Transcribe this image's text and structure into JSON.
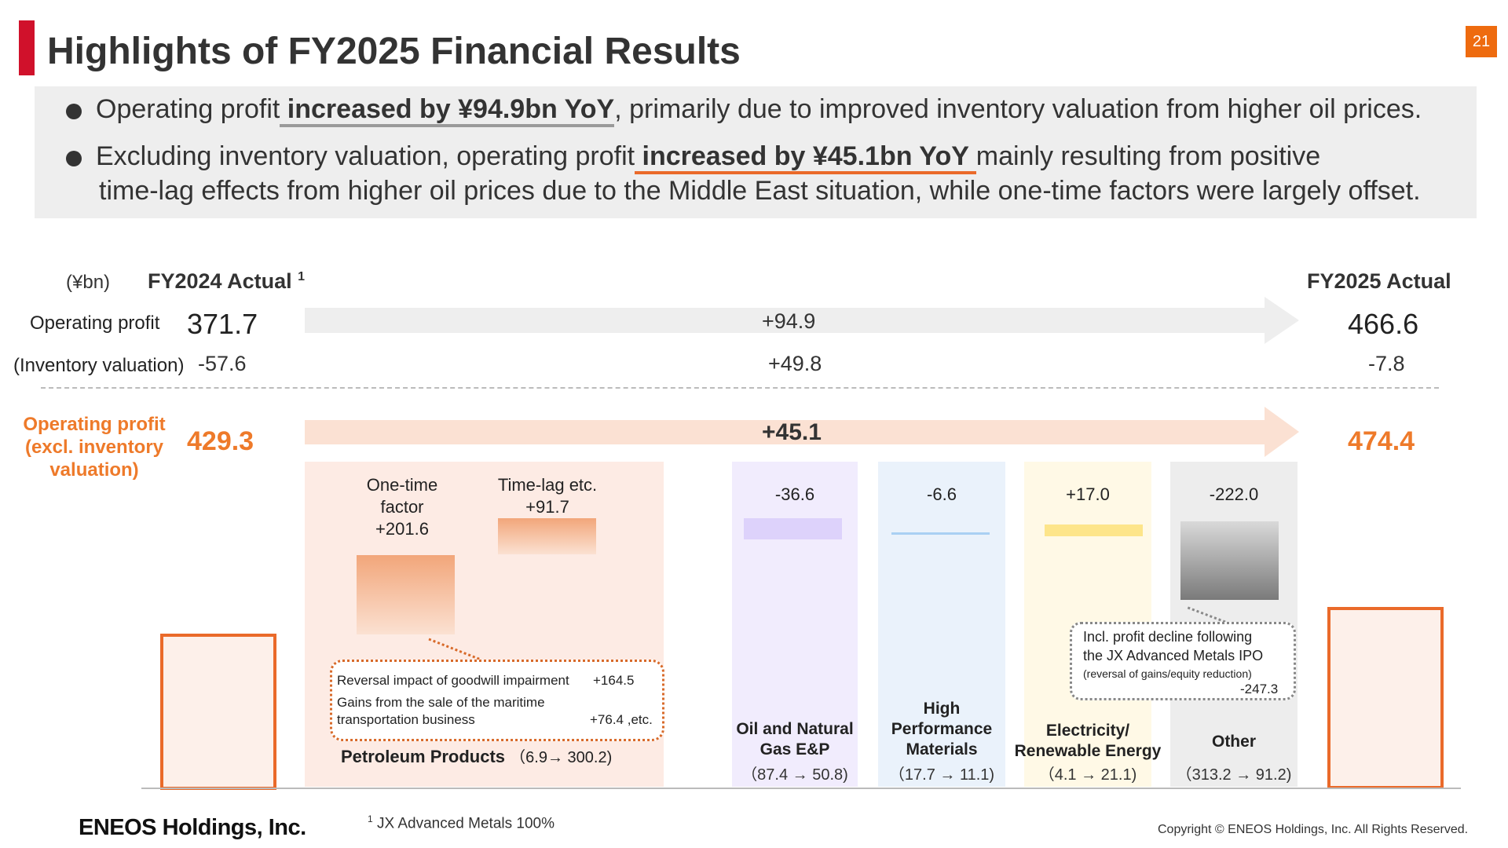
{
  "page": {
    "title": "Highlights of FY2025 Financial Results",
    "number": "21"
  },
  "summary": {
    "line1_a": "Operating profit",
    "line1_b": " increased by ¥94.9bn YoY",
    "line1_c": ", primarily due to improved inventory valuation from higher oil prices.",
    "line2_a": "Excluding inventory valuation, operating profit",
    "line2_b": " increased by ¥45.1bn YoY ",
    "line2_c": "mainly resulting from positive",
    "line3": "time-lag effects from higher oil prices due to the Middle East situation, while one-time factors were largely offset."
  },
  "header": {
    "unit": "(¥bn)",
    "fy2024": "FY2024 Actual",
    "fy2024_note": "1",
    "fy2025": "FY2025 Actual"
  },
  "rows": {
    "op_label": "Operating profit",
    "op_2024": "371.7",
    "op_delta": "+94.9",
    "op_2025": "466.6",
    "inv_label": "(Inventory valuation)",
    "inv_2024": "-57.6",
    "inv_delta": "+49.8",
    "inv_2025": "-7.8",
    "excl_label_1": "Operating profit",
    "excl_label_2": "(excl. inventory",
    "excl_label_3": "valuation)",
    "excl_2024": "429.3",
    "excl_delta": "+45.1",
    "excl_2025": "474.4"
  },
  "segments": {
    "petroleum": {
      "onetime_1": "One-time",
      "onetime_2": "factor",
      "onetime_value": "+201.6",
      "timelag_label": "Time-lag etc.",
      "timelag_value": "+91.7",
      "ann_1_label": "Reversal impact of goodwill impairment",
      "ann_1_value": "+164.5",
      "ann_2_label_a": "Gains from the sale of the maritime",
      "ann_2_label_b": "transportation business",
      "ann_2_value": "+76.4 ,etc.",
      "name": "Petroleum Products",
      "range": "（6.9→ 300.2)"
    },
    "oil_gas": {
      "value": "-36.6",
      "name_1": "Oil and Natural",
      "name_2": "Gas E&P",
      "range": "（87.4 → 50.8)"
    },
    "hpm": {
      "value": "-6.6",
      "name_1": "High",
      "name_2": "Performance",
      "name_3": "Materials",
      "range": "（17.7 → 11.1)"
    },
    "electricity": {
      "value": "+17.0",
      "name_1": "Electricity/",
      "name_2": "Renewable Energy",
      "range": "（4.1 → 21.1)"
    },
    "other": {
      "value": "-222.0",
      "ann_1": "Incl. profit decline following",
      "ann_2": "the JX Advanced Metals IPO",
      "ann_3": "(reversal of gains/equity reduction)",
      "ann_value": "-247.3",
      "name": "Other",
      "range": "（313.2 → 91.2)"
    }
  },
  "footer": {
    "logo": "ENEOS Holdings, Inc.",
    "footnote_mark": "1",
    "footnote": " JX Advanced Metals 100%",
    "copyright": "Copyright © ENEOS Holdings, Inc. All Rights Reserved."
  },
  "colors": {
    "accent_red": "#d0112b",
    "accent_orange": "#ee7a2a",
    "page_badge": "#ee6b0f"
  }
}
